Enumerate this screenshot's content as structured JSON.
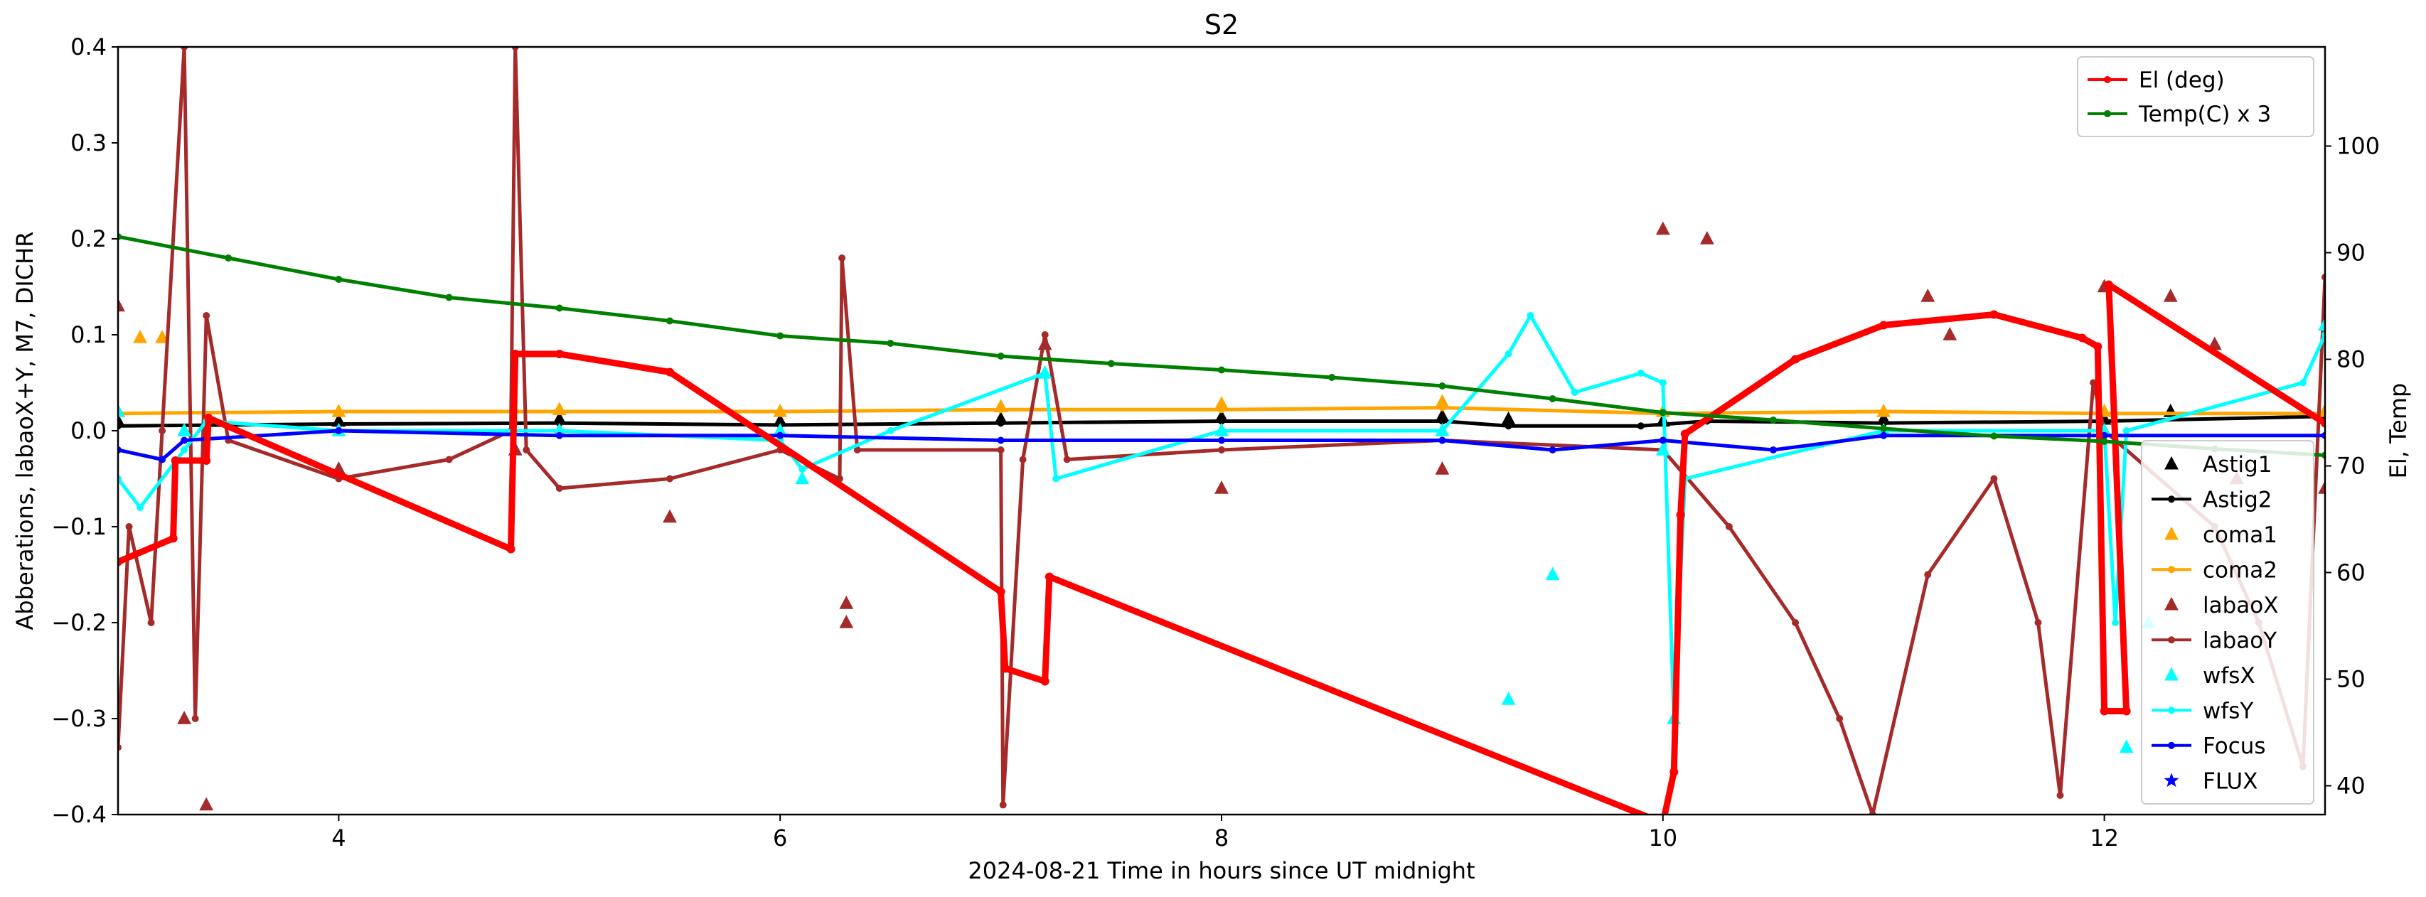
{
  "chart_data": {
    "type": "line",
    "title": "S2",
    "xlabel": "2024-08-21  Time in hours since UT midnight",
    "ylabel": "Abberations, labaoX+Y, M7, DICHR",
    "y2label": "El, Temp",
    "xlim": [
      3.0,
      13.0
    ],
    "ylim": [
      -0.4,
      0.4
    ],
    "y2lim": [
      37.3,
      109.3
    ],
    "xticks": [
      4,
      6,
      8,
      10,
      12
    ],
    "yticks": [
      -0.4,
      -0.3,
      -0.2,
      -0.1,
      0.0,
      0.1,
      0.2,
      0.3,
      0.4
    ],
    "yticklabels": [
      "−0.4",
      "−0.3",
      "−0.2",
      "−0.1",
      "0.0",
      "0.1",
      "0.2",
      "0.3",
      "0.4"
    ],
    "y2ticks": [
      40,
      50,
      60,
      70,
      80,
      90,
      100
    ],
    "grid": false,
    "legend_right_axis": {
      "placement": "top-right",
      "entries": [
        "El (deg)",
        "Temp(C) x 3"
      ]
    },
    "legend_left_axis": {
      "placement": "lower-right",
      "entries": [
        "Astig1",
        "Astig2",
        "coma1",
        "coma2",
        "labaoX",
        "labaoY",
        "wfsX",
        "wfsY",
        "Focus",
        "FLUX"
      ]
    },
    "series": [
      {
        "name": "El (deg)",
        "axis": "right",
        "color": "#ff0000",
        "style": "line-dot",
        "points": [
          [
            3.0,
            61.0
          ],
          [
            3.25,
            63.2
          ],
          [
            3.26,
            70.5
          ],
          [
            3.4,
            70.5
          ],
          [
            3.41,
            74.5
          ],
          [
            4.78,
            62.2
          ],
          [
            4.8,
            80.5
          ],
          [
            5.0,
            80.5
          ],
          [
            5.5,
            78.8
          ],
          [
            7.0,
            58.2
          ],
          [
            7.02,
            51.0
          ],
          [
            7.2,
            49.8
          ],
          [
            7.22,
            59.6
          ],
          [
            10.0,
            36.5
          ],
          [
            10.05,
            41.3
          ],
          [
            10.08,
            65.4
          ],
          [
            10.1,
            73.0
          ],
          [
            10.6,
            80.0
          ],
          [
            11.0,
            83.2
          ],
          [
            11.5,
            84.2
          ],
          [
            11.9,
            82.0
          ],
          [
            11.97,
            81.2
          ],
          [
            12.0,
            47.0
          ],
          [
            12.1,
            47.0
          ],
          [
            12.02,
            87.0
          ],
          [
            13.0,
            74.0
          ]
        ]
      },
      {
        "name": "Temp(C) x 3",
        "axis": "right",
        "color": "#008000",
        "style": "line-dot",
        "points": [
          [
            3.0,
            91.5
          ],
          [
            3.5,
            89.5
          ],
          [
            4.0,
            87.5
          ],
          [
            4.5,
            85.8
          ],
          [
            5.0,
            84.8
          ],
          [
            5.5,
            83.6
          ],
          [
            6.0,
            82.2
          ],
          [
            6.5,
            81.5
          ],
          [
            7.0,
            80.3
          ],
          [
            7.5,
            79.6
          ],
          [
            8.0,
            79.0
          ],
          [
            8.5,
            78.3
          ],
          [
            9.0,
            77.5
          ],
          [
            9.5,
            76.3
          ],
          [
            10.0,
            75.0
          ],
          [
            10.5,
            74.3
          ],
          [
            11.0,
            73.5
          ],
          [
            11.5,
            72.8
          ],
          [
            12.0,
            72.3
          ],
          [
            12.5,
            71.6
          ],
          [
            13.0,
            71.0
          ]
        ]
      },
      {
        "name": "Astig1",
        "axis": "left",
        "color": "#000000",
        "marker": "triangle",
        "points": [
          [
            3.0,
            0.01
          ],
          [
            4.0,
            0.01
          ],
          [
            5.0,
            0.012
          ],
          [
            6.0,
            0.01
          ],
          [
            7.0,
            0.012
          ],
          [
            8.0,
            0.014
          ],
          [
            9.0,
            0.015
          ],
          [
            9.3,
            0.012
          ],
          [
            10.0,
            0.01
          ],
          [
            11.0,
            0.012
          ],
          [
            12.0,
            0.012
          ],
          [
            12.3,
            0.02
          ],
          [
            13.0,
            0.02
          ]
        ]
      },
      {
        "name": "Astig2",
        "axis": "left",
        "color": "#000000",
        "style": "line-dot",
        "points": [
          [
            3.0,
            0.005
          ],
          [
            4.0,
            0.007
          ],
          [
            5.0,
            0.008
          ],
          [
            6.0,
            0.006
          ],
          [
            7.0,
            0.008
          ],
          [
            8.0,
            0.01
          ],
          [
            9.0,
            0.01
          ],
          [
            9.3,
            0.005
          ],
          [
            9.9,
            0.005
          ],
          [
            10.2,
            0.01
          ],
          [
            11.0,
            0.008
          ],
          [
            12.0,
            0.01
          ],
          [
            13.0,
            0.015
          ]
        ]
      },
      {
        "name": "coma1",
        "axis": "left",
        "color": "#ffa500",
        "marker": "triangle",
        "points": [
          [
            3.0,
            0.02
          ],
          [
            3.1,
            0.097
          ],
          [
            3.2,
            0.097
          ],
          [
            4.0,
            0.02
          ],
          [
            5.0,
            0.022
          ],
          [
            6.0,
            0.02
          ],
          [
            7.0,
            0.025
          ],
          [
            8.0,
            0.028
          ],
          [
            9.0,
            0.03
          ],
          [
            10.0,
            0.02
          ],
          [
            11.0,
            0.02
          ],
          [
            12.0,
            0.02
          ],
          [
            13.0,
            0.02
          ]
        ]
      },
      {
        "name": "coma2",
        "axis": "left",
        "color": "#ffa500",
        "style": "line-dot",
        "points": [
          [
            3.0,
            0.018
          ],
          [
            4.0,
            0.02
          ],
          [
            5.0,
            0.02
          ],
          [
            6.0,
            0.02
          ],
          [
            7.0,
            0.022
          ],
          [
            8.0,
            0.022
          ],
          [
            9.0,
            0.024
          ],
          [
            10.0,
            0.018
          ],
          [
            11.0,
            0.02
          ],
          [
            12.0,
            0.018
          ],
          [
            13.0,
            0.018
          ]
        ]
      },
      {
        "name": "labaoX",
        "axis": "left",
        "color": "#a52a2a",
        "marker": "triangle",
        "points": [
          [
            3.0,
            0.13
          ],
          [
            3.3,
            -0.3
          ],
          [
            3.4,
            -0.39
          ],
          [
            4.0,
            -0.04
          ],
          [
            4.8,
            -0.02
          ],
          [
            5.5,
            -0.09
          ],
          [
            6.3,
            -0.2
          ],
          [
            6.3,
            -0.18
          ],
          [
            7.2,
            0.09
          ],
          [
            8.0,
            -0.06
          ],
          [
            9.0,
            -0.04
          ],
          [
            10.0,
            0.21
          ],
          [
            10.2,
            0.2
          ],
          [
            11.2,
            0.14
          ],
          [
            11.3,
            0.1
          ],
          [
            12.0,
            0.15
          ],
          [
            12.3,
            0.14
          ],
          [
            12.5,
            0.09
          ],
          [
            12.6,
            -0.05
          ],
          [
            13.0,
            -0.06
          ]
        ]
      },
      {
        "name": "labaoY",
        "axis": "left",
        "color": "#a52a2a",
        "style": "line-dot",
        "points": [
          [
            3.0,
            -0.33
          ],
          [
            3.05,
            -0.1
          ],
          [
            3.15,
            -0.2
          ],
          [
            3.2,
            0.0
          ],
          [
            3.3,
            0.4
          ],
          [
            3.35,
            -0.3
          ],
          [
            3.4,
            0.12
          ],
          [
            3.5,
            -0.01
          ],
          [
            4.0,
            -0.05
          ],
          [
            4.5,
            -0.03
          ],
          [
            4.78,
            0.0
          ],
          [
            4.8,
            0.4
          ],
          [
            4.85,
            -0.02
          ],
          [
            5.0,
            -0.06
          ],
          [
            5.5,
            -0.05
          ],
          [
            6.0,
            -0.02
          ],
          [
            6.27,
            -0.05
          ],
          [
            6.28,
            0.18
          ],
          [
            6.35,
            -0.02
          ],
          [
            7.0,
            -0.02
          ],
          [
            7.01,
            -0.39
          ],
          [
            7.1,
            -0.03
          ],
          [
            7.2,
            0.1
          ],
          [
            7.3,
            -0.03
          ],
          [
            8.0,
            -0.02
          ],
          [
            9.0,
            -0.01
          ],
          [
            10.0,
            -0.02
          ],
          [
            10.3,
            -0.1
          ],
          [
            10.6,
            -0.2
          ],
          [
            10.8,
            -0.3
          ],
          [
            10.95,
            -0.4
          ],
          [
            11.2,
            -0.15
          ],
          [
            11.5,
            -0.05
          ],
          [
            11.7,
            -0.2
          ],
          [
            11.8,
            -0.38
          ],
          [
            11.95,
            0.05
          ],
          [
            12.0,
            0.0
          ],
          [
            12.5,
            -0.1
          ],
          [
            12.7,
            -0.2
          ],
          [
            12.9,
            -0.35
          ],
          [
            13.0,
            0.16
          ]
        ]
      },
      {
        "name": "wfsX",
        "axis": "left",
        "color": "#00ffff",
        "marker": "triangle",
        "points": [
          [
            3.0,
            0.02
          ],
          [
            3.3,
            0.0
          ],
          [
            4.0,
            0.0
          ],
          [
            5.0,
            0.0
          ],
          [
            6.0,
            0.0
          ],
          [
            6.1,
            -0.05
          ],
          [
            7.2,
            0.06
          ],
          [
            8.0,
            0.0
          ],
          [
            9.0,
            0.0
          ],
          [
            9.3,
            -0.28
          ],
          [
            9.5,
            -0.15
          ],
          [
            10.0,
            -0.02
          ],
          [
            10.05,
            -0.3
          ],
          [
            11.0,
            0.0
          ],
          [
            12.0,
            0.0
          ],
          [
            12.1,
            -0.33
          ],
          [
            12.2,
            -0.2
          ],
          [
            13.0,
            0.11
          ]
        ]
      },
      {
        "name": "wfsY",
        "axis": "left",
        "color": "#00ffff",
        "style": "line-dot",
        "points": [
          [
            3.0,
            -0.05
          ],
          [
            3.1,
            -0.08
          ],
          [
            3.3,
            -0.02
          ],
          [
            3.4,
            0.01
          ],
          [
            4.0,
            0.0
          ],
          [
            5.0,
            0.0
          ],
          [
            6.0,
            -0.01
          ],
          [
            6.1,
            -0.04
          ],
          [
            6.5,
            0.0
          ],
          [
            7.2,
            0.06
          ],
          [
            7.25,
            -0.05
          ],
          [
            8.0,
            0.0
          ],
          [
            9.0,
            0.0
          ],
          [
            9.3,
            0.08
          ],
          [
            9.4,
            0.12
          ],
          [
            9.6,
            0.04
          ],
          [
            9.9,
            0.06
          ],
          [
            10.0,
            0.05
          ],
          [
            10.05,
            -0.3
          ],
          [
            10.1,
            -0.05
          ],
          [
            11.0,
            0.0
          ],
          [
            12.0,
            0.0
          ],
          [
            12.05,
            -0.2
          ],
          [
            12.1,
            0.0
          ],
          [
            12.9,
            0.05
          ],
          [
            13.0,
            0.1
          ]
        ]
      },
      {
        "name": "Focus",
        "axis": "left",
        "color": "#0000ff",
        "style": "line-dot",
        "points": [
          [
            3.0,
            -0.02
          ],
          [
            3.2,
            -0.03
          ],
          [
            3.3,
            -0.01
          ],
          [
            4.0,
            0.0
          ],
          [
            5.0,
            -0.005
          ],
          [
            6.0,
            -0.005
          ],
          [
            7.0,
            -0.01
          ],
          [
            8.0,
            -0.01
          ],
          [
            9.0,
            -0.01
          ],
          [
            9.5,
            -0.02
          ],
          [
            10.0,
            -0.01
          ],
          [
            10.5,
            -0.02
          ],
          [
            11.0,
            -0.005
          ],
          [
            12.0,
            -0.005
          ],
          [
            13.0,
            -0.005
          ]
        ]
      },
      {
        "name": "FLUX",
        "axis": "left",
        "color": "#0000ff",
        "marker": "star",
        "points": []
      }
    ]
  }
}
